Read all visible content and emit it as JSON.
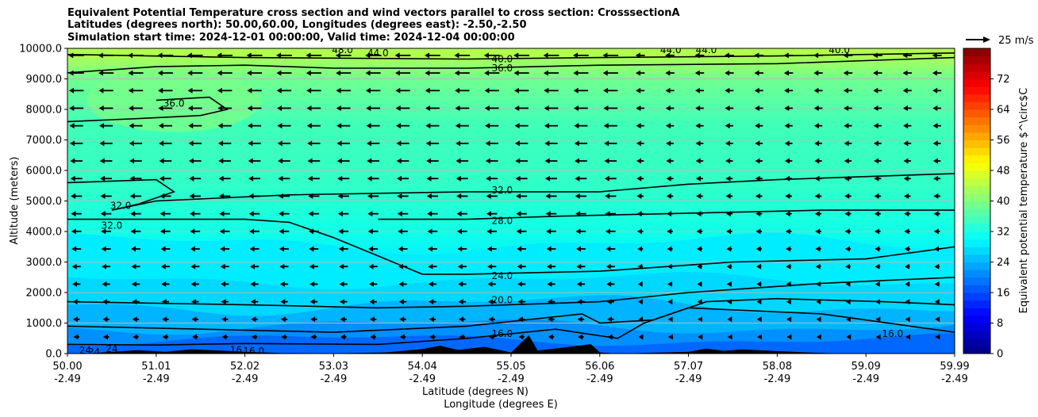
{
  "chart_data": {
    "type": "heatmap",
    "title_lines": [
      "Equivalent Potential Temperature cross section and wind vectors parallel to cross section: CrosssectionA",
      "Latitudes (degrees north): 50.00,60.00, Longitudes (degrees east): -2.50,-2.50",
      "Simulation start time: 2024-12-01 00:00:00, Valid time: 2024-12-04 00:00:00"
    ],
    "ylabel": "Altitude (meters)",
    "xlabel": "Latitude (degrees N)",
    "xlabel2": "Longitude (degrees E)",
    "ylim": [
      0,
      10000
    ],
    "y_ticks": [
      "0.0",
      "1000.0",
      "2000.0",
      "3000.0",
      "4000.0",
      "5000.0",
      "6000.0",
      "7000.0",
      "8000.0",
      "9000.0",
      "10000.0"
    ],
    "x_ticks": [
      {
        "lat": "50.00",
        "lon": "-2.49"
      },
      {
        "lat": "51.01",
        "lon": "-2.49"
      },
      {
        "lat": "52.02",
        "lon": "-2.49"
      },
      {
        "lat": "53.03",
        "lon": "-2.49"
      },
      {
        "lat": "54.04",
        "lon": "-2.49"
      },
      {
        "lat": "55.05",
        "lon": "-2.49"
      },
      {
        "lat": "56.06",
        "lon": "-2.49"
      },
      {
        "lat": "57.07",
        "lon": "-2.49"
      },
      {
        "lat": "58.08",
        "lon": "-2.49"
      },
      {
        "lat": "59.09",
        "lon": "-2.49"
      },
      {
        "lat": "59.99",
        "lon": "-2.49"
      }
    ],
    "grid": "horizontal",
    "colorbar": {
      "label": "Equivalent potential temperature $^\\circ$C",
      "range": [
        0,
        80
      ],
      "ticks": [
        "0",
        "8",
        "16",
        "24",
        "32",
        "40",
        "48",
        "56",
        "64",
        "72"
      ],
      "colormap": "jet"
    },
    "wind_key": {
      "label": "25 m/s"
    },
    "contour_labels": [
      {
        "text": "44.0",
        "x": 0.35,
        "y": 9850
      },
      {
        "text": "40.0",
        "x": 0.49,
        "y": 9650
      },
      {
        "text": "36.0",
        "x": 0.49,
        "y": 9350
      },
      {
        "text": "48.0",
        "x": 0.31,
        "y": 9950
      },
      {
        "text": "44.0",
        "x": 0.68,
        "y": 9950
      },
      {
        "text": "44.0",
        "x": 0.72,
        "y": 9950
      },
      {
        "text": "40.0",
        "x": 0.87,
        "y": 9950
      },
      {
        "text": "36.0",
        "x": 0.12,
        "y": 8200
      },
      {
        "text": "32.0",
        "x": 0.49,
        "y": 5350
      },
      {
        "text": "32.0",
        "x": 0.06,
        "y": 4850
      },
      {
        "text": "32.0",
        "x": 0.05,
        "y": 4200
      },
      {
        "text": "28.0",
        "x": 0.49,
        "y": 4350
      },
      {
        "text": "24.0",
        "x": 0.49,
        "y": 2550
      },
      {
        "text": "20.0",
        "x": 0.49,
        "y": 1750
      },
      {
        "text": "16.0",
        "x": 0.49,
        "y": 650
      },
      {
        "text": "16.0",
        "x": 0.93,
        "y": 650
      },
      {
        "text": "24",
        "x": 0.02,
        "y": 100
      },
      {
        "text": "24",
        "x": 0.03,
        "y": 50
      },
      {
        "text": "24",
        "x": 0.05,
        "y": 150
      },
      {
        "text": "16",
        "x": 0.19,
        "y": 120
      },
      {
        "text": "16.0",
        "x": 0.21,
        "y": 80
      }
    ]
  }
}
